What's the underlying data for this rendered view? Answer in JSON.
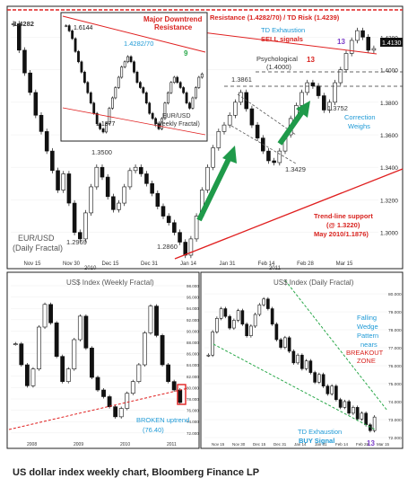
{
  "caption": "US dollar index weekly chart, Bloomberg Finance LP",
  "colors": {
    "annotation_red": "#d8231f",
    "annotation_blue": "#1f9ad6",
    "arrow_green": "#1f9a4a",
    "resistance_red": "#e02020",
    "trend_green": "#2aa84a",
    "purple_count": "#7a3cc8"
  },
  "chart_data": [
    {
      "id": "eurusd_daily",
      "type": "candlestick",
      "title": "EUR/USD (Daily Fractal)",
      "x_ticks": [
        "Nov 15",
        "Nov 30",
        "Dec 15",
        "Dec 31",
        "Jan 14",
        "Jan 31",
        "Feb 14",
        "Feb 28",
        "Mar 15"
      ],
      "x_year_labels": [
        "2010",
        "2011"
      ],
      "y_ticks": [
        1.3,
        1.32,
        1.34,
        1.36,
        1.38,
        1.4,
        1.42
      ],
      "y_tick_labels": [
        "1.3000",
        "1.3200",
        "1.3400",
        "1.3600",
        "1.3800",
        "1.4000",
        "1.4200"
      ],
      "last_price_label": "1.4130",
      "ylim": [
        1.286,
        1.434
      ],
      "closes": [
        1.4282,
        1.412,
        1.398,
        1.386,
        1.372,
        1.362,
        1.35,
        1.338,
        1.326,
        1.336,
        1.318,
        1.3,
        1.296,
        1.312,
        1.328,
        1.34,
        1.334,
        1.322,
        1.314,
        1.318,
        1.328,
        1.338,
        1.34,
        1.336,
        1.33,
        1.324,
        1.316,
        1.31,
        1.306,
        1.3,
        1.294,
        1.286,
        1.296,
        1.31,
        1.326,
        1.34,
        1.352,
        1.362,
        1.366,
        1.372,
        1.38,
        1.386,
        1.376,
        1.366,
        1.358,
        1.35,
        1.344,
        1.3429,
        1.35,
        1.36,
        1.37,
        1.378,
        1.386,
        1.392,
        1.39,
        1.384,
        1.3752,
        1.38,
        1.392,
        1.4,
        1.41,
        1.418,
        1.424,
        1.42,
        1.412,
        1.413
      ],
      "annotations": {
        "peak_high": "1.4282",
        "left_low": "1.2969",
        "major_low": "1.2860",
        "level_1_35": "1.3500",
        "feb_high": "1.3861",
        "feb_low": "1.3429",
        "mar_low": "1.3752",
        "resistance": "Resistance (1.4282/70) / TD Risk (1.4239)",
        "td_exhaustion": "TD Exhaustion",
        "sell_signals": "SELL signals",
        "count_13_a": "13",
        "count_13_b": "13",
        "psychological": "Psychological",
        "psych_level": "(1.4000)",
        "correction_weighs": "Correction Weighs",
        "trendline_support": "Trend-line support",
        "trendline_at": "(@ 1.3220)",
        "trendline_dates": "May 2010/1.1876)"
      },
      "inset": {
        "title": "EUR/USD (Weekly Fractal)",
        "major_downtrend": "Major Downtrend Resistance",
        "resistance_label": "1.4282/70",
        "count_9": "9",
        "high": "1.6144",
        "low": "1.1877"
      }
    },
    {
      "id": "usd_index_weekly",
      "type": "candlestick",
      "title": "US$ Index (Weekly Fractal)",
      "y_tick_labels": [
        "98.000",
        "96.000",
        "94.000",
        "92.000",
        "90.000",
        "88.000",
        "86.000",
        "84.000",
        "82.000",
        "80.000",
        "78.000",
        "76.000",
        "74.000",
        "72.000"
      ],
      "x_ticks": [
        "2008",
        "2009",
        "2010",
        "2011"
      ],
      "closes": [
        83.5,
        81.0,
        78.5,
        80.5,
        85.5,
        88.2,
        86.0,
        82.0,
        79.0,
        80.5,
        84.0,
        86.8,
        83.0,
        79.5,
        78.0,
        77.2,
        76.0,
        74.8,
        75.8,
        77.6,
        79.0,
        81.0,
        84.8,
        88.0,
        84.5,
        81.0,
        79.0,
        78.0,
        76.5
      ],
      "annotations": {
        "broken_uptrend": "BROKEN uptrend",
        "uptrend_level": "(76.40)"
      }
    },
    {
      "id": "usd_index_daily",
      "type": "candlestick",
      "title": "US$ Index (Daily Fractal)",
      "y_tick_labels": [
        "80.000",
        "79.000",
        "78.000",
        "77.000",
        "76.000",
        "75.000",
        "74.000",
        "73.000",
        "72.000"
      ],
      "x_ticks": [
        "Nov 15",
        "Nov 30",
        "Dec 15",
        "Dec 31",
        "Jan 14",
        "Jan 31",
        "Feb 14",
        "Feb 28",
        "Mar 15"
      ],
      "x_year_labels": [
        "2010",
        "2011"
      ],
      "closes": [
        77.2,
        78.4,
        79.1,
        79.6,
        79.2,
        78.6,
        79.0,
        79.5,
        78.8,
        78.2,
        78.7,
        79.3,
        79.8,
        80.1,
        79.6,
        78.8,
        78.0,
        77.6,
        78.1,
        77.4,
        76.8,
        77.2,
        76.5,
        76.9,
        76.3,
        75.8,
        76.2,
        75.6,
        75.2,
        75.6,
        74.9,
        74.5,
        74.8,
        74.2,
        74.5,
        73.9,
        74.2,
        73.6,
        73.3,
        74.0
      ],
      "annotations": {
        "falling_wedge": "Falling Wedge Pattern nears",
        "breakout": "BREAKOUT ZONE",
        "td_exhaustion": "TD Exhaustion",
        "buy_signal": "BUY Signal",
        "count_13": "13"
      }
    }
  ]
}
